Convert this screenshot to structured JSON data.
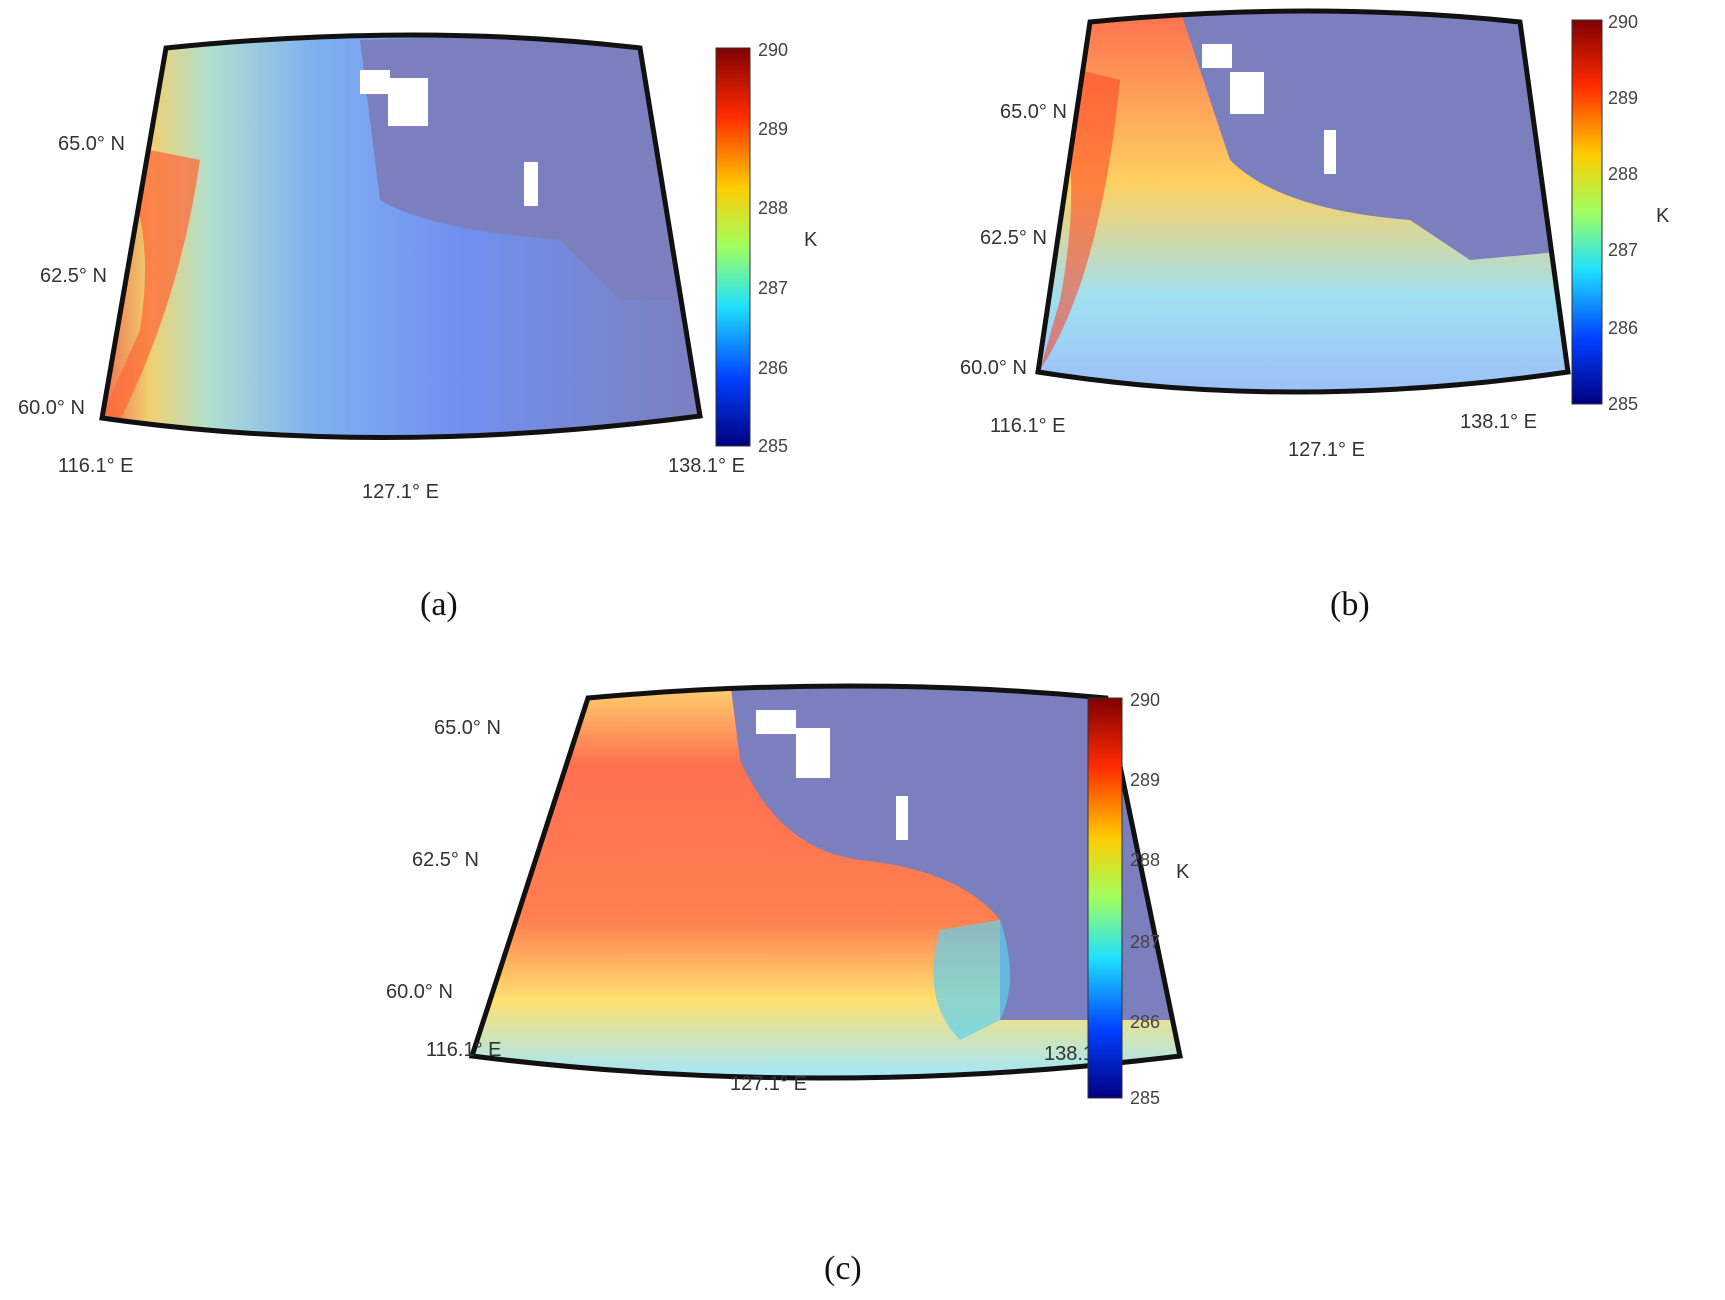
{
  "figure": {
    "panels": [
      {
        "id": "a",
        "caption": "(a)",
        "lat_labels": [
          "65.0° N",
          "62.5° N",
          "60.0° N"
        ],
        "lon_labels": [
          "116.1° E",
          "127.1° E",
          "138.1° E"
        ],
        "colorbar": {
          "unit": "K",
          "ticks": [
            "290",
            "289",
            "288",
            "287",
            "286",
            "285"
          ]
        },
        "warm_region": "west-edge"
      },
      {
        "id": "b",
        "caption": "(b)",
        "lat_labels": [
          "65.0° N",
          "62.5° N",
          "60.0° N"
        ],
        "lon_labels": [
          "116.1° E",
          "127.1° E",
          "138.1° E"
        ],
        "colorbar": {
          "unit": "K",
          "ticks": [
            "290",
            "289",
            "288",
            "287",
            "286",
            "285"
          ]
        },
        "warm_region": "west-and-central"
      },
      {
        "id": "c",
        "caption": "(c)",
        "lat_labels": [
          "65.0° N",
          "62.5° N",
          "60.0° N"
        ],
        "lon_labels": [
          "116.1° E",
          "127.1° E",
          "138.1° E"
        ],
        "colorbar": {
          "unit": "K",
          "ticks": [
            "290",
            "289",
            "288",
            "287",
            "286",
            "285"
          ]
        },
        "warm_region": "broad-west-central"
      }
    ],
    "colors": {
      "ocean": "#7b7fbe",
      "colormap": [
        "#800000",
        "#ff2a00",
        "#ffcc00",
        "#a0ff60",
        "#20e0ff",
        "#0040ff",
        "#000080"
      ]
    }
  }
}
